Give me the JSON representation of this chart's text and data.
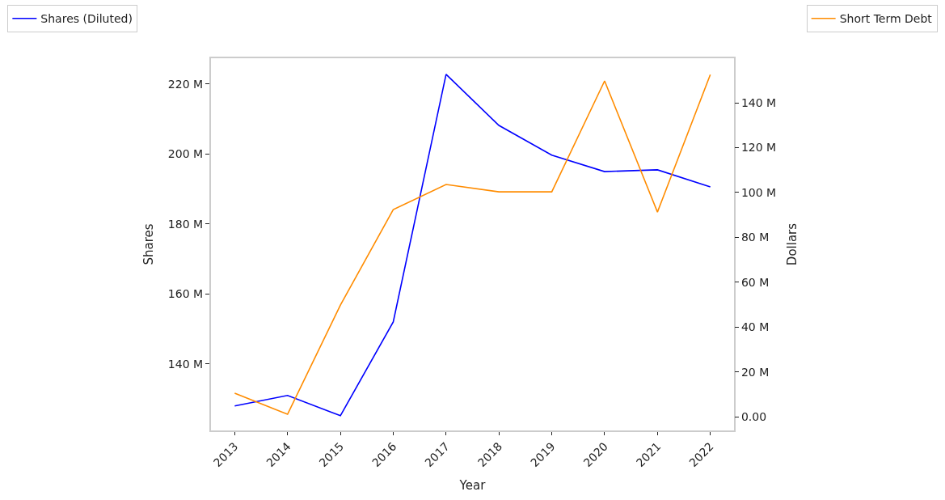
{
  "chart_data": {
    "type": "line",
    "xlabel": "Year",
    "ylabel": "Shares",
    "y2label": "Dollars",
    "categories": [
      "2013",
      "2014",
      "2015",
      "2016",
      "2017",
      "2018",
      "2019",
      "2020",
      "2021",
      "2022"
    ],
    "series": [
      {
        "name": "Shares (Diluted)",
        "color": "#0000ff",
        "values": [
          128.0,
          131.0,
          125.2,
          152.0,
          222.8,
          208.2,
          199.7,
          195.0,
          195.5,
          190.6
        ]
      },
      {
        "name": "Short Term Debt",
        "color": "#ff8c00",
        "axis": "y2",
        "values": [
          10.5,
          1.1,
          49.8,
          92.4,
          103.6,
          100.3,
          100.3,
          149.8,
          91.3,
          152.6
        ]
      }
    ],
    "ylim": [
      121.0,
      227.4
    ],
    "yticks": [
      {
        "value": 140,
        "label": "140 M"
      },
      {
        "value": 160,
        "label": "160 M"
      },
      {
        "value": 180,
        "label": "180 M"
      },
      {
        "value": 200,
        "label": "200 M"
      },
      {
        "value": 220,
        "label": "220 M"
      }
    ],
    "y2lim": [
      -6.1,
      159.9
    ],
    "y2ticks": [
      {
        "value": 0,
        "label": "0.00"
      },
      {
        "value": 20,
        "label": "20 M"
      },
      {
        "value": 40,
        "label": "40 M"
      },
      {
        "value": 60,
        "label": "60 M"
      },
      {
        "value": 80,
        "label": "80 M"
      },
      {
        "value": 100,
        "label": "100 M"
      },
      {
        "value": 120,
        "label": "120 M"
      },
      {
        "value": 140,
        "label": "140 M"
      }
    ],
    "legend": "top",
    "marker": "none",
    "line_style": "solid"
  }
}
